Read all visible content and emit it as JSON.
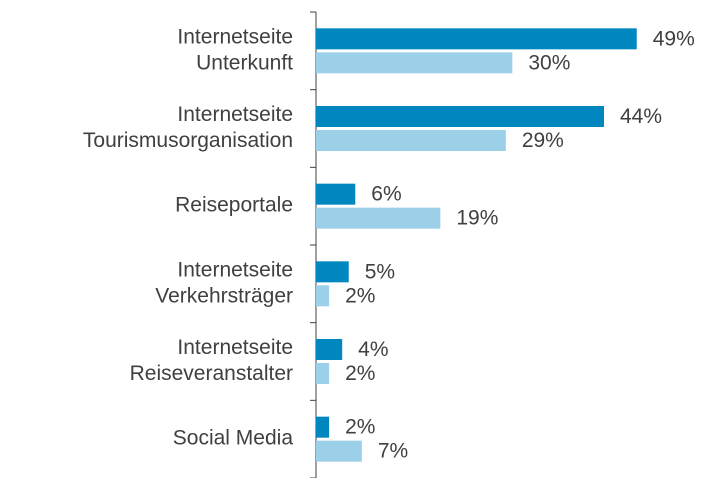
{
  "chart_data": {
    "type": "bar",
    "orientation": "horizontal",
    "categories": [
      [
        "Internetseite",
        "Unterkunft"
      ],
      [
        "Internetseite",
        "Tourismusorganisation"
      ],
      [
        "Reiseportale"
      ],
      [
        "Internetseite",
        "Verkehrsträger"
      ],
      [
        "Internetseite",
        "Reiseveranstalter"
      ],
      [
        "Social Media"
      ]
    ],
    "series": [
      {
        "color": "#0087c0",
        "values": [
          49,
          44,
          6,
          5,
          4,
          2
        ],
        "value_labels": [
          "49%",
          "44%",
          "6%",
          "5%",
          "4%",
          "2%"
        ]
      },
      {
        "color": "#9ccfe8",
        "values": [
          30,
          29,
          19,
          2,
          2,
          7
        ],
        "value_labels": [
          "30%",
          "29%",
          "19%",
          "2%",
          "2%",
          "7%"
        ]
      }
    ],
    "xlim": [
      0,
      55
    ]
  }
}
